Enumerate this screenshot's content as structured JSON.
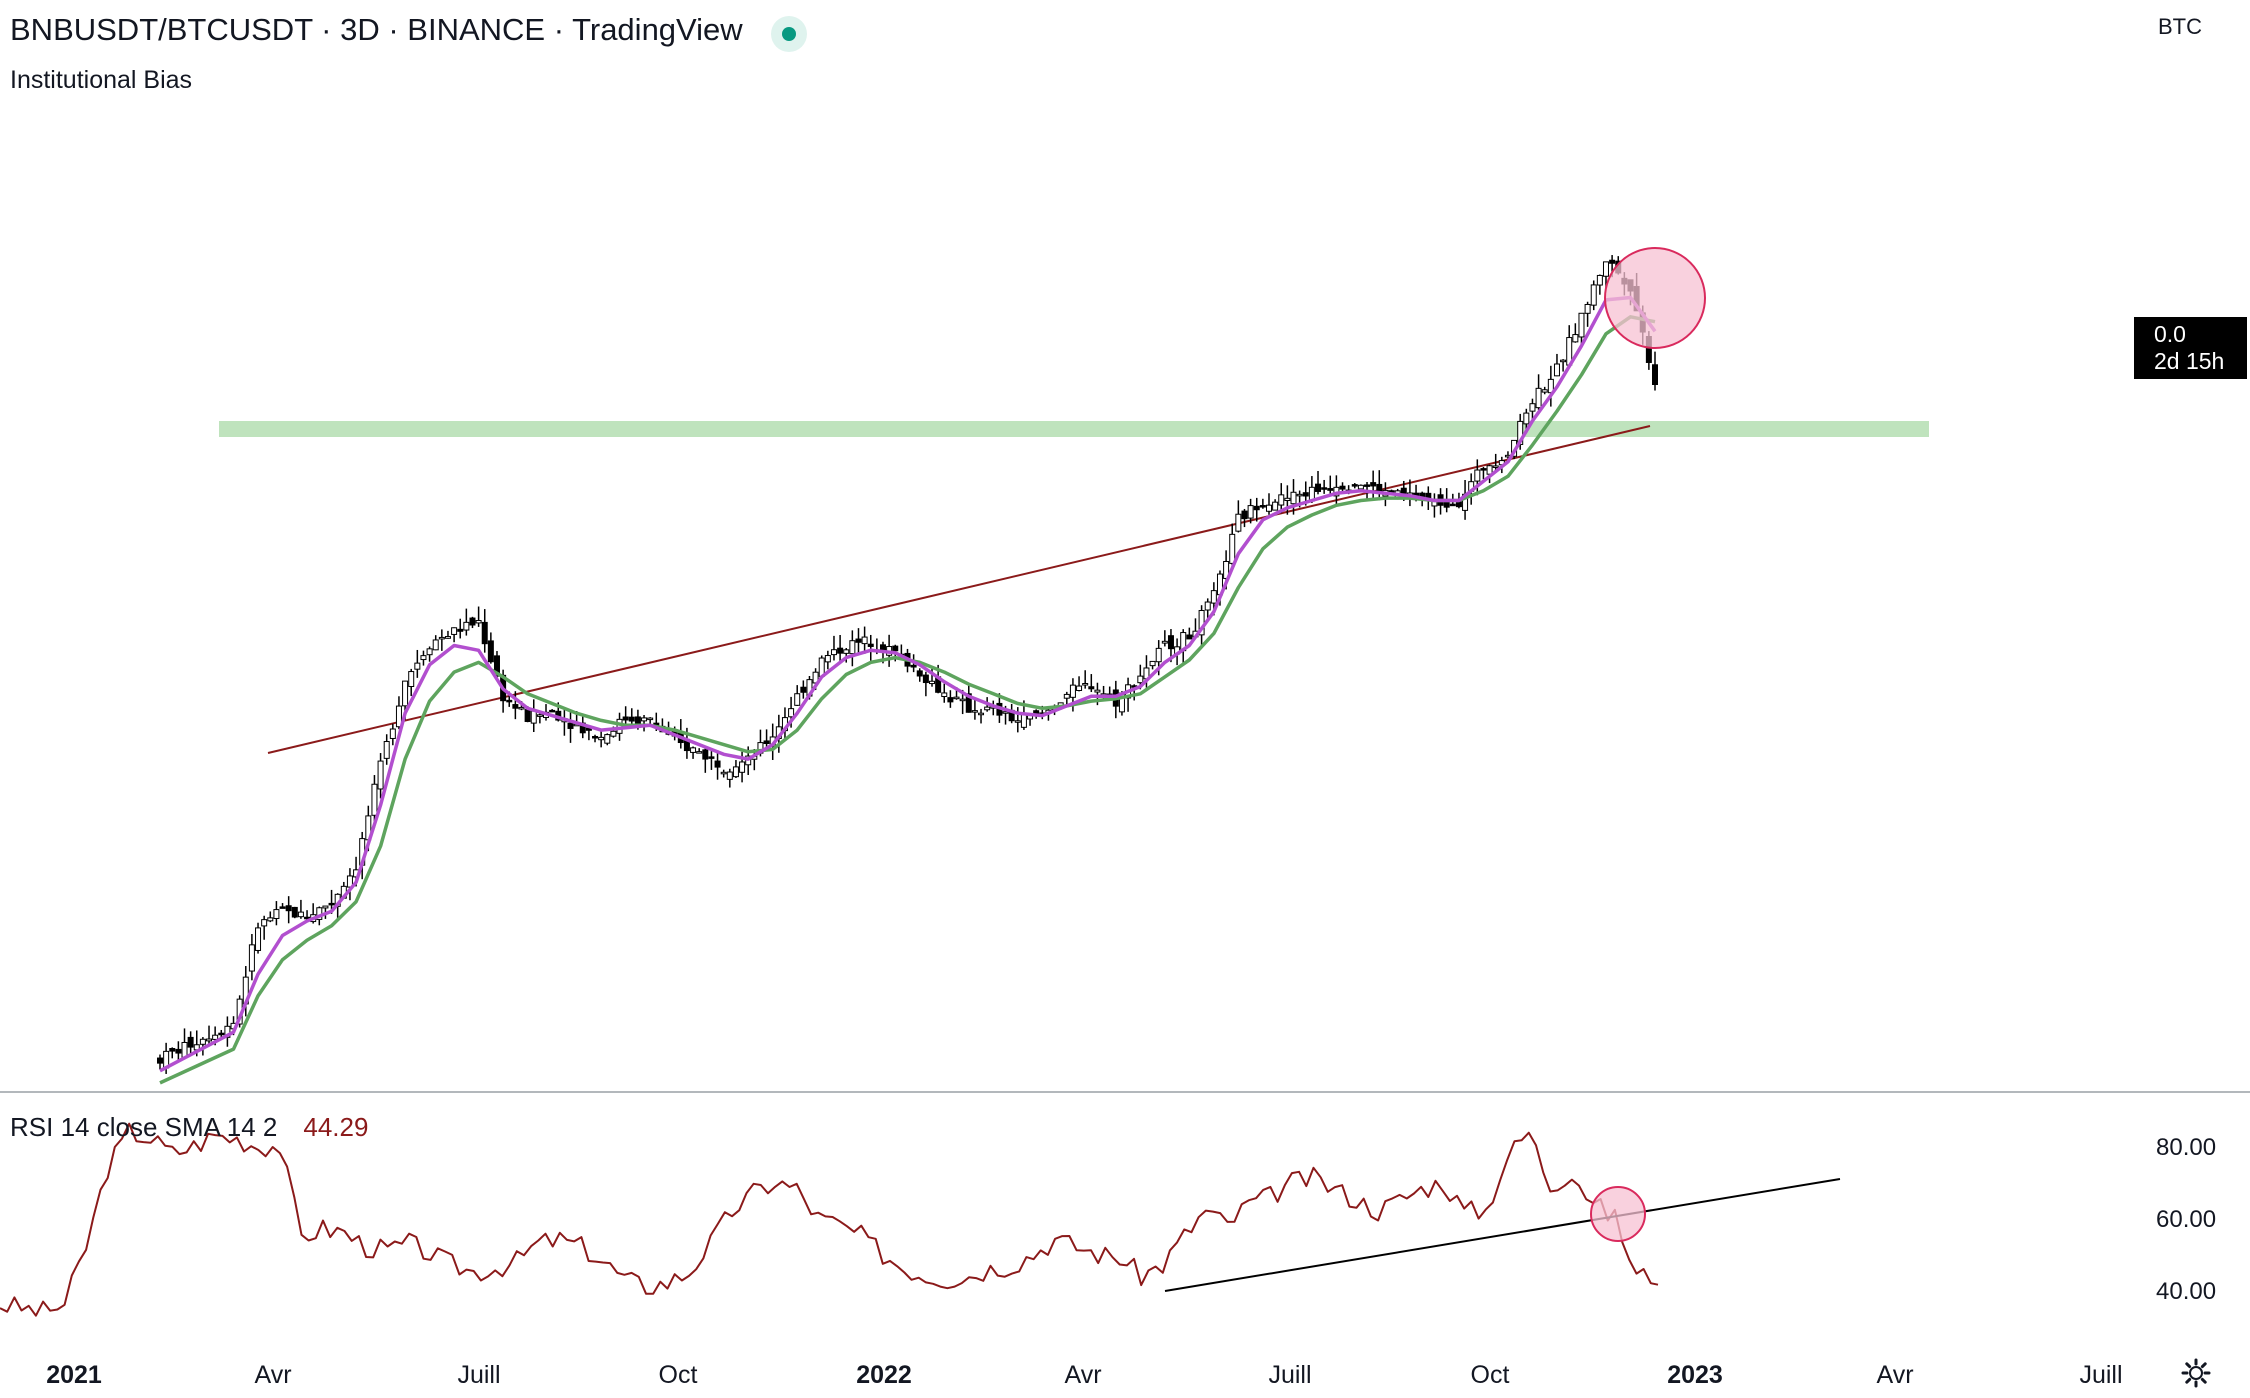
{
  "header": {
    "title": "BNBUSDT/BTCUSDT · 3D · BINANCE · TradingView",
    "indicator_name": "Institutional Bias",
    "currency": "BTC"
  },
  "price_tag": {
    "value": "0.0",
    "countdown": "2d 15h"
  },
  "rsi": {
    "label": "RSI 14 close SMA 14 2",
    "value": "44.29",
    "color": "#8b1a1a"
  },
  "colors": {
    "ema_fast": "#b24fcf",
    "ema_slow": "#5ea45e",
    "support_zone": "#bfe3bd",
    "trendline": "#8b1a1a",
    "highlight_fill": "#f7c1d3",
    "highlight_stroke": "#d92a5d",
    "rsi_line": "#8b1a1a",
    "rsi_trendline": "#000000"
  },
  "icons": {
    "settings": "gear-icon"
  },
  "chart_data": {
    "type": "candlestick",
    "x_axis": {
      "tick_labels": [
        "2021",
        "Avr",
        "Juill",
        "Oct",
        "2022",
        "Avr",
        "Juill",
        "Oct",
        "2023",
        "Avr",
        "Juill"
      ],
      "bold_labels": [
        "2021",
        "2022",
        "2023"
      ]
    },
    "rsi_axis": {
      "tick_labels": [
        "80.00",
        "60.00",
        "40.00"
      ],
      "ylim": [
        30,
        88
      ]
    },
    "price_series_trend": [
      [
        0,
        1.5
      ],
      [
        3,
        3.0
      ],
      [
        4,
        7.0
      ],
      [
        5,
        7.6
      ],
      [
        6,
        7.4
      ],
      [
        7,
        8.0
      ],
      [
        8,
        9.5
      ],
      [
        9,
        13.6
      ],
      [
        10,
        17.2
      ],
      [
        11,
        18.7
      ],
      [
        12,
        19.2
      ],
      [
        13,
        19.6
      ],
      [
        14,
        16.5
      ],
      [
        15,
        15.6
      ],
      [
        16,
        15.9
      ],
      [
        17,
        15.3
      ],
      [
        18,
        14.8
      ],
      [
        19,
        15.6
      ],
      [
        20,
        15.5
      ],
      [
        21,
        14.6
      ],
      [
        22,
        14.2
      ],
      [
        23,
        13.6
      ],
      [
        24,
        13.8
      ],
      [
        25,
        14.9
      ],
      [
        26,
        16.5
      ],
      [
        27,
        18.0
      ],
      [
        28,
        18.6
      ],
      [
        29,
        18.8
      ],
      [
        30,
        18.3
      ],
      [
        31,
        17.5
      ],
      [
        32,
        16.6
      ],
      [
        33,
        16.0
      ],
      [
        34,
        15.9
      ],
      [
        35,
        15.5
      ],
      [
        36,
        15.7
      ],
      [
        37,
        16.6
      ],
      [
        38,
        17.0
      ],
      [
        39,
        16.3
      ],
      [
        40,
        17.4
      ],
      [
        41,
        18.6
      ],
      [
        42,
        19.0
      ],
      [
        43,
        20.6
      ],
      [
        44,
        23.8
      ],
      [
        45,
        24.6
      ],
      [
        46,
        24.7
      ],
      [
        47,
        25.0
      ],
      [
        48,
        25.3
      ],
      [
        49,
        25.3
      ],
      [
        50,
        24.9
      ],
      [
        51,
        24.8
      ],
      [
        52,
        24.5
      ],
      [
        53,
        24.6
      ],
      [
        54,
        26.0
      ],
      [
        55,
        26.6
      ],
      [
        56,
        28.8
      ],
      [
        57,
        30.0
      ],
      [
        58,
        32.2
      ],
      [
        59,
        34.6
      ],
      [
        60,
        33.5
      ],
      [
        61,
        29.5
      ]
    ],
    "ema_fast_trend": [
      [
        0,
        1.0
      ],
      [
        3,
        2.6
      ],
      [
        4,
        5.0
      ],
      [
        5,
        6.6
      ],
      [
        6,
        7.2
      ],
      [
        7,
        7.6
      ],
      [
        8,
        8.8
      ],
      [
        9,
        12.0
      ],
      [
        10,
        15.8
      ],
      [
        11,
        17.8
      ],
      [
        12,
        18.6
      ],
      [
        13,
        18.4
      ],
      [
        14,
        16.8
      ],
      [
        15,
        16.0
      ],
      [
        16,
        15.7
      ],
      [
        17,
        15.4
      ],
      [
        18,
        15.1
      ],
      [
        19,
        15.2
      ],
      [
        20,
        15.3
      ],
      [
        21,
        14.9
      ],
      [
        22,
        14.5
      ],
      [
        23,
        14.1
      ],
      [
        24,
        13.9
      ],
      [
        25,
        14.5
      ],
      [
        26,
        15.8
      ],
      [
        27,
        17.3
      ],
      [
        28,
        18.1
      ],
      [
        29,
        18.4
      ],
      [
        30,
        18.3
      ],
      [
        31,
        17.8
      ],
      [
        32,
        17.1
      ],
      [
        33,
        16.5
      ],
      [
        34,
        16.1
      ],
      [
        35,
        15.8
      ],
      [
        36,
        15.7
      ],
      [
        37,
        16.1
      ],
      [
        38,
        16.5
      ],
      [
        39,
        16.5
      ],
      [
        40,
        16.9
      ],
      [
        41,
        17.9
      ],
      [
        42,
        18.6
      ],
      [
        43,
        20.0
      ],
      [
        44,
        22.4
      ],
      [
        45,
        23.8
      ],
      [
        46,
        24.3
      ],
      [
        47,
        24.6
      ],
      [
        48,
        24.9
      ],
      [
        49,
        25.0
      ],
      [
        50,
        24.9
      ],
      [
        51,
        24.8
      ],
      [
        52,
        24.6
      ],
      [
        53,
        24.6
      ],
      [
        54,
        25.4
      ],
      [
        55,
        26.2
      ],
      [
        56,
        27.9
      ],
      [
        57,
        29.3
      ],
      [
        58,
        31.0
      ],
      [
        59,
        32.9
      ],
      [
        60,
        33.0
      ],
      [
        61,
        31.6
      ]
    ],
    "ema_slow_trend": [
      [
        0,
        0.5
      ],
      [
        3,
        1.9
      ],
      [
        4,
        4.1
      ],
      [
        5,
        5.6
      ],
      [
        6,
        6.4
      ],
      [
        7,
        7.0
      ],
      [
        8,
        8.0
      ],
      [
        9,
        10.3
      ],
      [
        10,
        13.9
      ],
      [
        11,
        16.3
      ],
      [
        12,
        17.5
      ],
      [
        13,
        17.9
      ],
      [
        14,
        17.3
      ],
      [
        15,
        16.6
      ],
      [
        16,
        16.2
      ],
      [
        17,
        15.8
      ],
      [
        18,
        15.5
      ],
      [
        19,
        15.3
      ],
      [
        20,
        15.3
      ],
      [
        21,
        15.1
      ],
      [
        22,
        14.8
      ],
      [
        23,
        14.5
      ],
      [
        24,
        14.2
      ],
      [
        25,
        14.3
      ],
      [
        26,
        15.1
      ],
      [
        27,
        16.4
      ],
      [
        28,
        17.4
      ],
      [
        29,
        17.9
      ],
      [
        30,
        18.1
      ],
      [
        31,
        17.9
      ],
      [
        32,
        17.5
      ],
      [
        33,
        17.0
      ],
      [
        34,
        16.6
      ],
      [
        35,
        16.2
      ],
      [
        36,
        16.0
      ],
      [
        37,
        16.1
      ],
      [
        38,
        16.3
      ],
      [
        39,
        16.4
      ],
      [
        40,
        16.6
      ],
      [
        41,
        17.3
      ],
      [
        42,
        18.0
      ],
      [
        43,
        19.1
      ],
      [
        44,
        21.0
      ],
      [
        45,
        22.6
      ],
      [
        46,
        23.5
      ],
      [
        47,
        24.0
      ],
      [
        48,
        24.4
      ],
      [
        49,
        24.6
      ],
      [
        50,
        24.7
      ],
      [
        51,
        24.7
      ],
      [
        52,
        24.6
      ],
      [
        53,
        24.6
      ],
      [
        54,
        25.0
      ],
      [
        55,
        25.6
      ],
      [
        56,
        26.9
      ],
      [
        57,
        28.3
      ],
      [
        58,
        29.8
      ],
      [
        59,
        31.5
      ],
      [
        60,
        32.2
      ],
      [
        61,
        32.0
      ]
    ],
    "rsi_series_trend": [
      [
        0,
        36
      ],
      [
        1,
        35
      ],
      [
        2,
        34
      ],
      [
        3,
        36
      ],
      [
        4,
        52
      ],
      [
        5,
        74
      ],
      [
        6,
        84
      ],
      [
        7,
        82
      ],
      [
        8,
        78
      ],
      [
        9,
        80
      ],
      [
        10,
        83
      ],
      [
        11,
        82
      ],
      [
        12,
        80
      ],
      [
        13,
        80
      ],
      [
        14,
        55
      ],
      [
        15,
        57
      ],
      [
        16,
        56
      ],
      [
        17,
        52
      ],
      [
        18,
        51
      ],
      [
        19,
        53
      ],
      [
        20,
        50
      ],
      [
        21,
        47
      ],
      [
        22,
        45
      ],
      [
        23,
        46
      ],
      [
        24,
        48
      ],
      [
        25,
        53
      ],
      [
        26,
        54
      ],
      [
        27,
        52
      ],
      [
        28,
        48
      ],
      [
        29,
        43
      ],
      [
        30,
        41
      ],
      [
        31,
        42
      ],
      [
        32,
        45
      ],
      [
        33,
        53
      ],
      [
        34,
        62
      ],
      [
        35,
        67
      ],
      [
        36,
        70
      ],
      [
        37,
        68
      ],
      [
        38,
        60
      ],
      [
        39,
        58
      ],
      [
        40,
        55
      ],
      [
        41,
        50
      ],
      [
        42,
        46
      ],
      [
        43,
        44
      ],
      [
        44,
        43
      ],
      [
        45,
        44
      ],
      [
        46,
        46
      ],
      [
        47,
        47
      ],
      [
        48,
        50
      ],
      [
        49,
        54
      ],
      [
        50,
        52
      ],
      [
        51,
        50
      ],
      [
        52,
        49
      ],
      [
        53,
        44
      ],
      [
        54,
        47
      ],
      [
        55,
        55
      ],
      [
        56,
        62
      ],
      [
        57,
        58
      ],
      [
        58,
        64
      ],
      [
        59,
        66
      ],
      [
        60,
        70
      ],
      [
        61,
        71
      ],
      [
        62,
        68
      ],
      [
        63,
        65
      ],
      [
        64,
        62
      ],
      [
        65,
        65
      ],
      [
        66,
        68
      ],
      [
        67,
        70
      ],
      [
        68,
        62
      ],
      [
        69,
        62
      ],
      [
        70,
        77
      ],
      [
        71,
        84
      ],
      [
        72,
        69
      ],
      [
        73,
        73
      ],
      [
        74,
        64
      ],
      [
        75,
        60
      ],
      [
        76,
        44
      ],
      [
        77,
        44
      ]
    ],
    "annotations": [
      "horizontal support zone along the 2021 highs",
      "rising trendline from the April 2021 low",
      "highlighted latest candles below EMAs",
      "rising RSI trendline with highlighted break"
    ]
  }
}
